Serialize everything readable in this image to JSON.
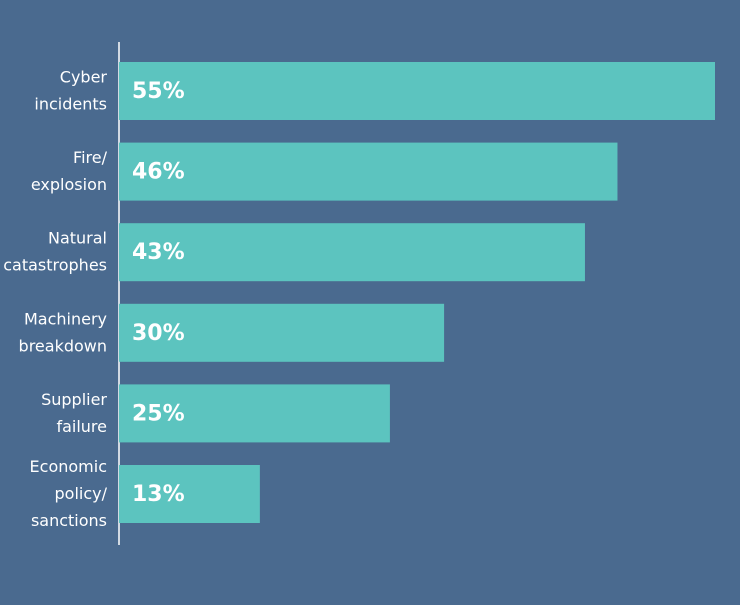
{
  "chart_data": {
    "type": "bar",
    "orientation": "horizontal",
    "categories": [
      [
        "Cyber",
        "incidents"
      ],
      [
        "Fire/",
        "explosion"
      ],
      [
        "Natural",
        "catastrophes"
      ],
      [
        "Machinery",
        "breakdown"
      ],
      [
        "Supplier",
        "failure"
      ],
      [
        "Economic",
        "policy/",
        "sanctions"
      ]
    ],
    "values": [
      55,
      46,
      43,
      30,
      25,
      13
    ],
    "value_labels": [
      "55%",
      "46%",
      "43%",
      "30%",
      "25%",
      "13%"
    ],
    "color": "#5cc4bf",
    "xlim": [
      0,
      55
    ]
  }
}
